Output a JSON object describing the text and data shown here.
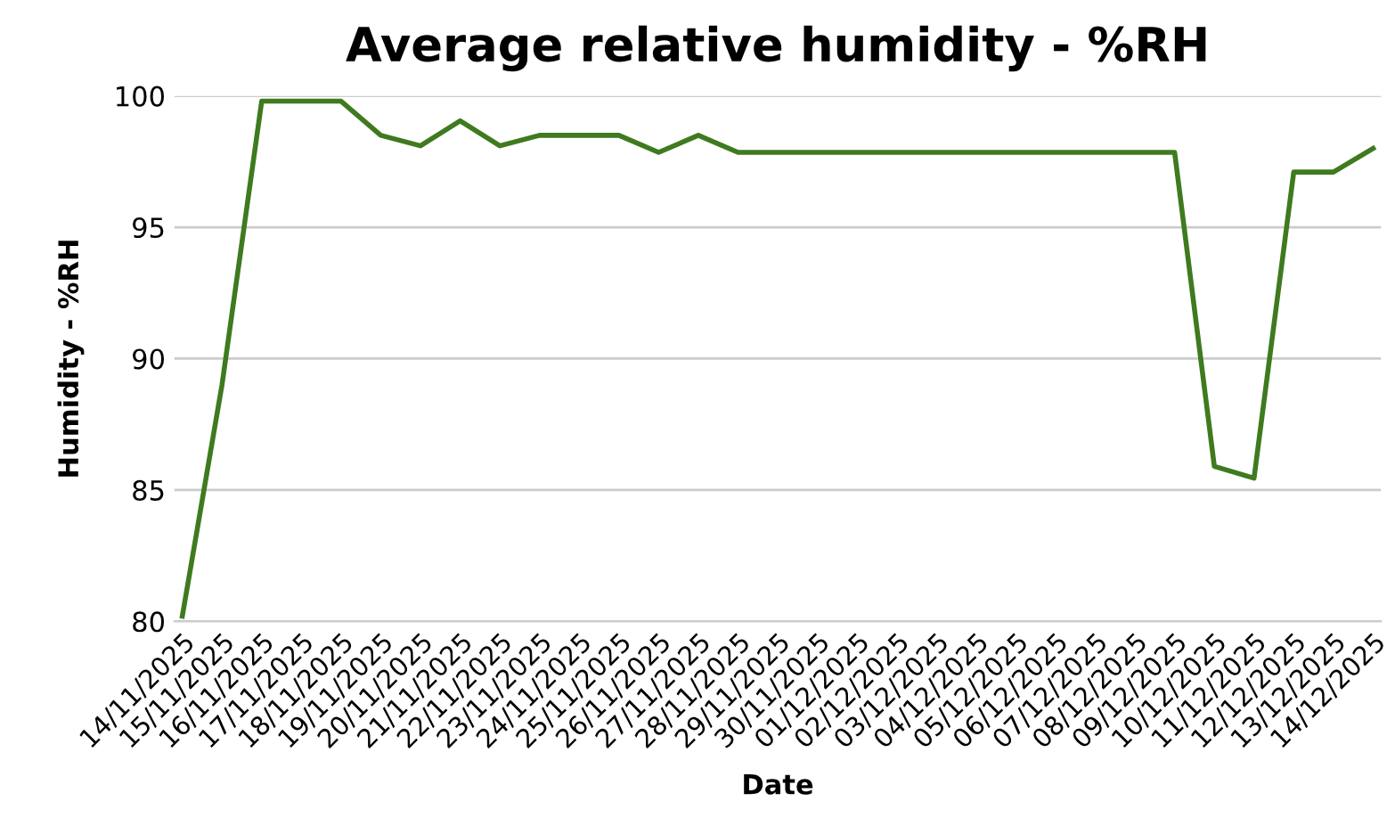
{
  "chart_data": {
    "type": "line",
    "title": "Average relative humidity - %RH",
    "xlabel": "Date",
    "ylabel": "Humidity - %RH",
    "categories": [
      "14/11/2025",
      "15/11/2025",
      "16/11/2025",
      "17/11/2025",
      "18/11/2025",
      "19/11/2025",
      "20/11/2025",
      "21/11/2025",
      "22/11/2025",
      "23/11/2025",
      "24/11/2025",
      "25/11/2025",
      "26/11/2025",
      "27/11/2025",
      "28/11/2025",
      "29/11/2025",
      "30/11/2025",
      "01/12/2025",
      "02/12/2025",
      "03/12/2025",
      "04/12/2025",
      "05/12/2025",
      "06/12/2025",
      "07/12/2025",
      "08/12/2025",
      "09/12/2025",
      "10/12/2025",
      "11/12/2025",
      "12/12/2025",
      "13/12/2025",
      "14/12/2025"
    ],
    "series": [
      {
        "color": "#3f7a1f",
        "values": [
          80.2,
          89.0,
          99.8,
          99.8,
          99.8,
          98.5,
          98.1,
          99.05,
          98.1,
          98.5,
          98.5,
          98.5,
          97.85,
          98.5,
          97.85,
          97.85,
          97.85,
          97.85,
          97.85,
          97.85,
          97.85,
          97.85,
          97.85,
          97.85,
          97.85,
          97.85,
          85.9,
          85.45,
          97.1,
          97.1,
          98.0
        ]
      }
    ],
    "ylim": [
      80,
      100
    ],
    "yticks": [
      80,
      85,
      90,
      95,
      100
    ],
    "grid": "y",
    "legend": false,
    "marker": "none",
    "line_style": "solid"
  }
}
